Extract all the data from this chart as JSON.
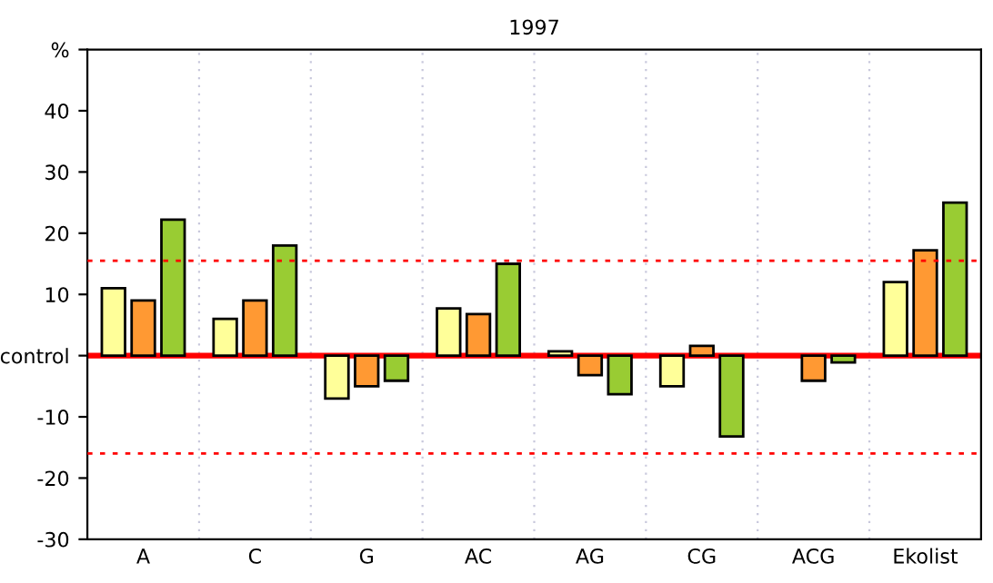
{
  "chart_data": {
    "type": "bar",
    "title": "1997",
    "categories": [
      "A",
      "C",
      "G",
      "AC",
      "AG",
      "CG",
      "ACG",
      "Ekolist"
    ],
    "series": [
      {
        "color": "#ffff99",
        "values": [
          11,
          6,
          -7,
          7.7,
          0.7,
          -5,
          null,
          12
        ]
      },
      {
        "color": "#ff9933",
        "values": [
          9,
          9,
          -5,
          6.8,
          -3.2,
          1.6,
          -4.1,
          17.2
        ]
      },
      {
        "color": "#99cc33",
        "values": [
          22.2,
          18,
          -4.1,
          15,
          -6.3,
          -13.2,
          -1.1,
          25
        ]
      }
    ],
    "ylim": [
      -30,
      50
    ],
    "yticks": [
      -30,
      -20,
      -10,
      {
        "value": 0,
        "label": "control"
      },
      10,
      20,
      30,
      40,
      {
        "value": 50,
        "label": "%"
      }
    ],
    "grid": "x",
    "legend": false,
    "ref_lines": [
      {
        "axis": "y",
        "value": 0,
        "color": "#ff0000",
        "line_style": "solid"
      },
      {
        "axis": "y",
        "value": 15.5,
        "color": "#ff0000",
        "line_style": "dotted"
      },
      {
        "axis": "y",
        "value": -16,
        "color": "#ff0000",
        "line_style": "dotted"
      }
    ]
  }
}
